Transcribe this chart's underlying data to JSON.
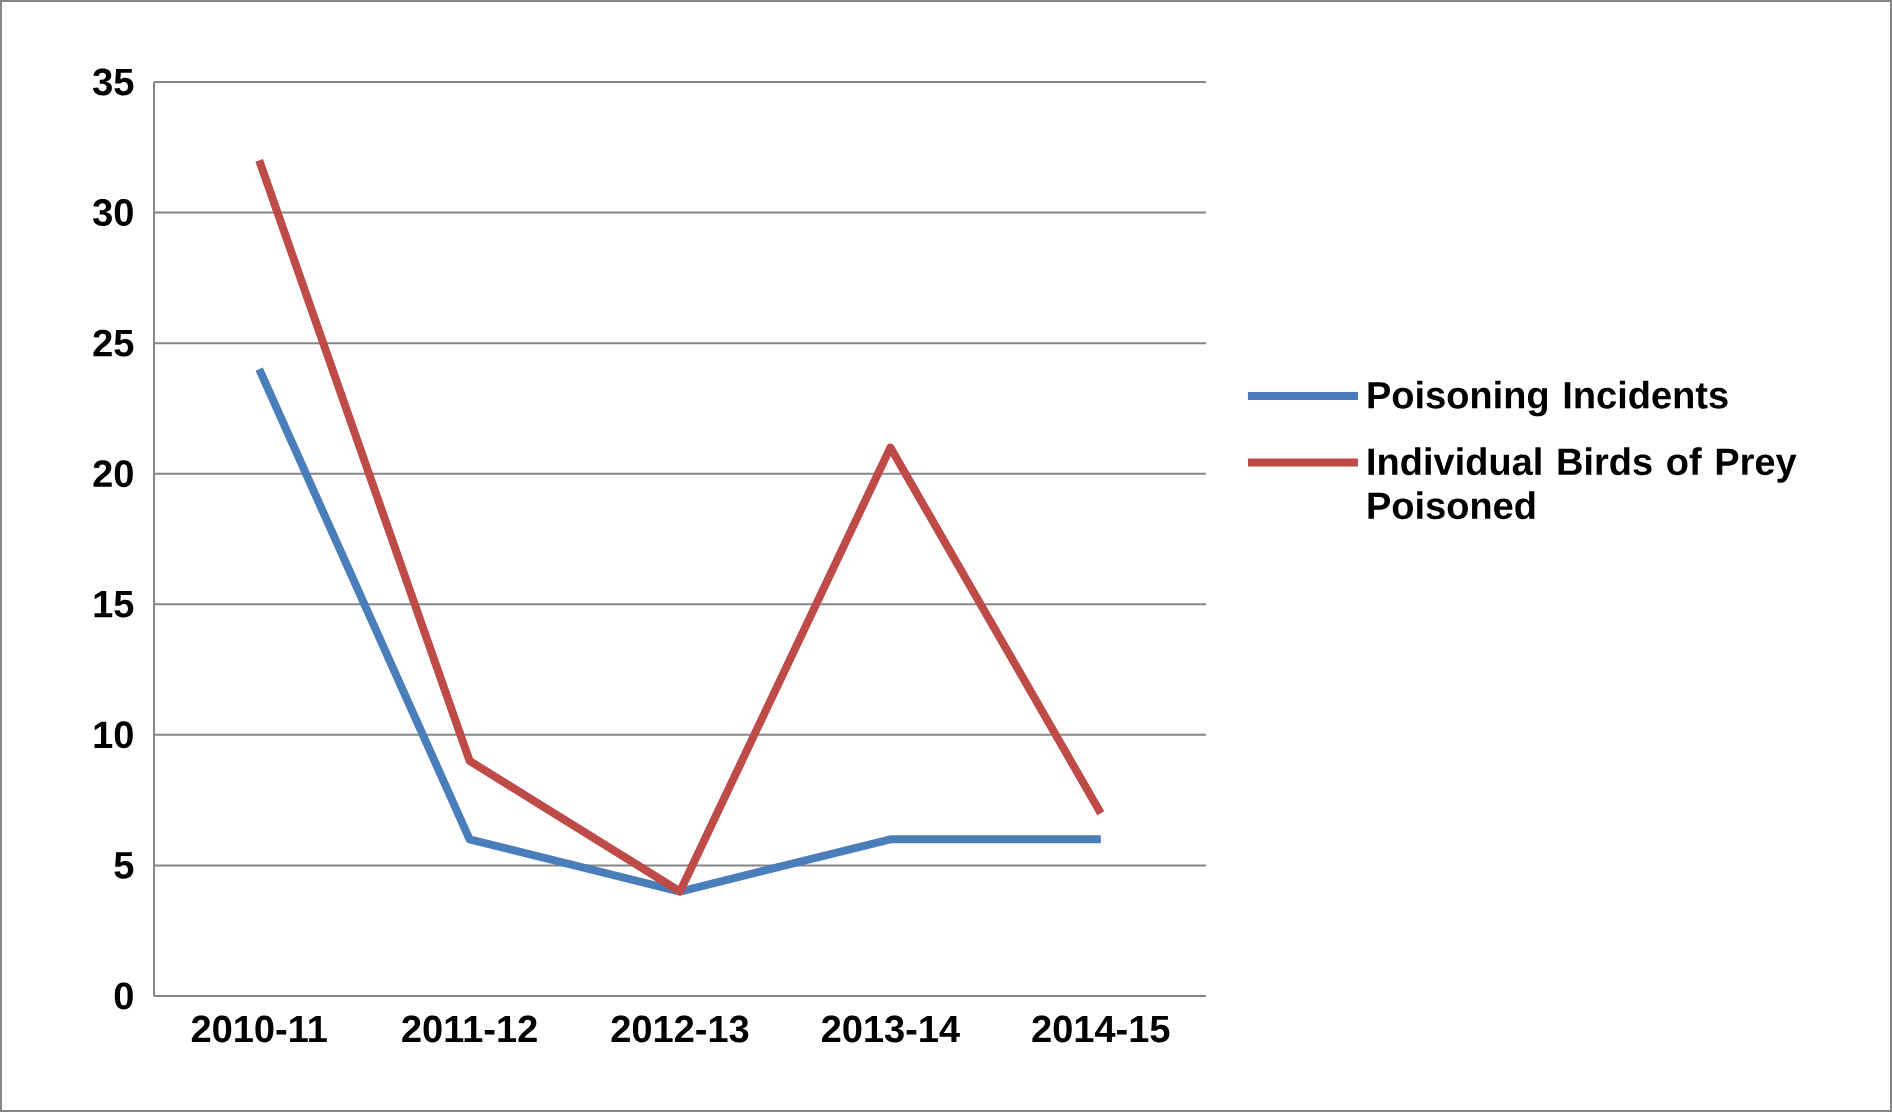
{
  "chart_data": {
    "type": "line",
    "categories": [
      "2010-11",
      "2011-12",
      "2012-13",
      "2013-14",
      "2014-15"
    ],
    "series": [
      {
        "name": "Poisoning Incidents",
        "color": "#4a7ebb",
        "values": [
          24,
          6,
          4,
          6,
          6
        ]
      },
      {
        "name": "Individual Birds of Prey Poisoned",
        "color": "#be4b48",
        "values": [
          32,
          9,
          4,
          21,
          7
        ]
      }
    ],
    "ylim": [
      0,
      35
    ],
    "yticks": [
      0,
      5,
      10,
      15,
      20,
      25,
      30,
      35
    ],
    "grid": "y",
    "legend": "right",
    "marker": "none",
    "line_style": "solid"
  }
}
